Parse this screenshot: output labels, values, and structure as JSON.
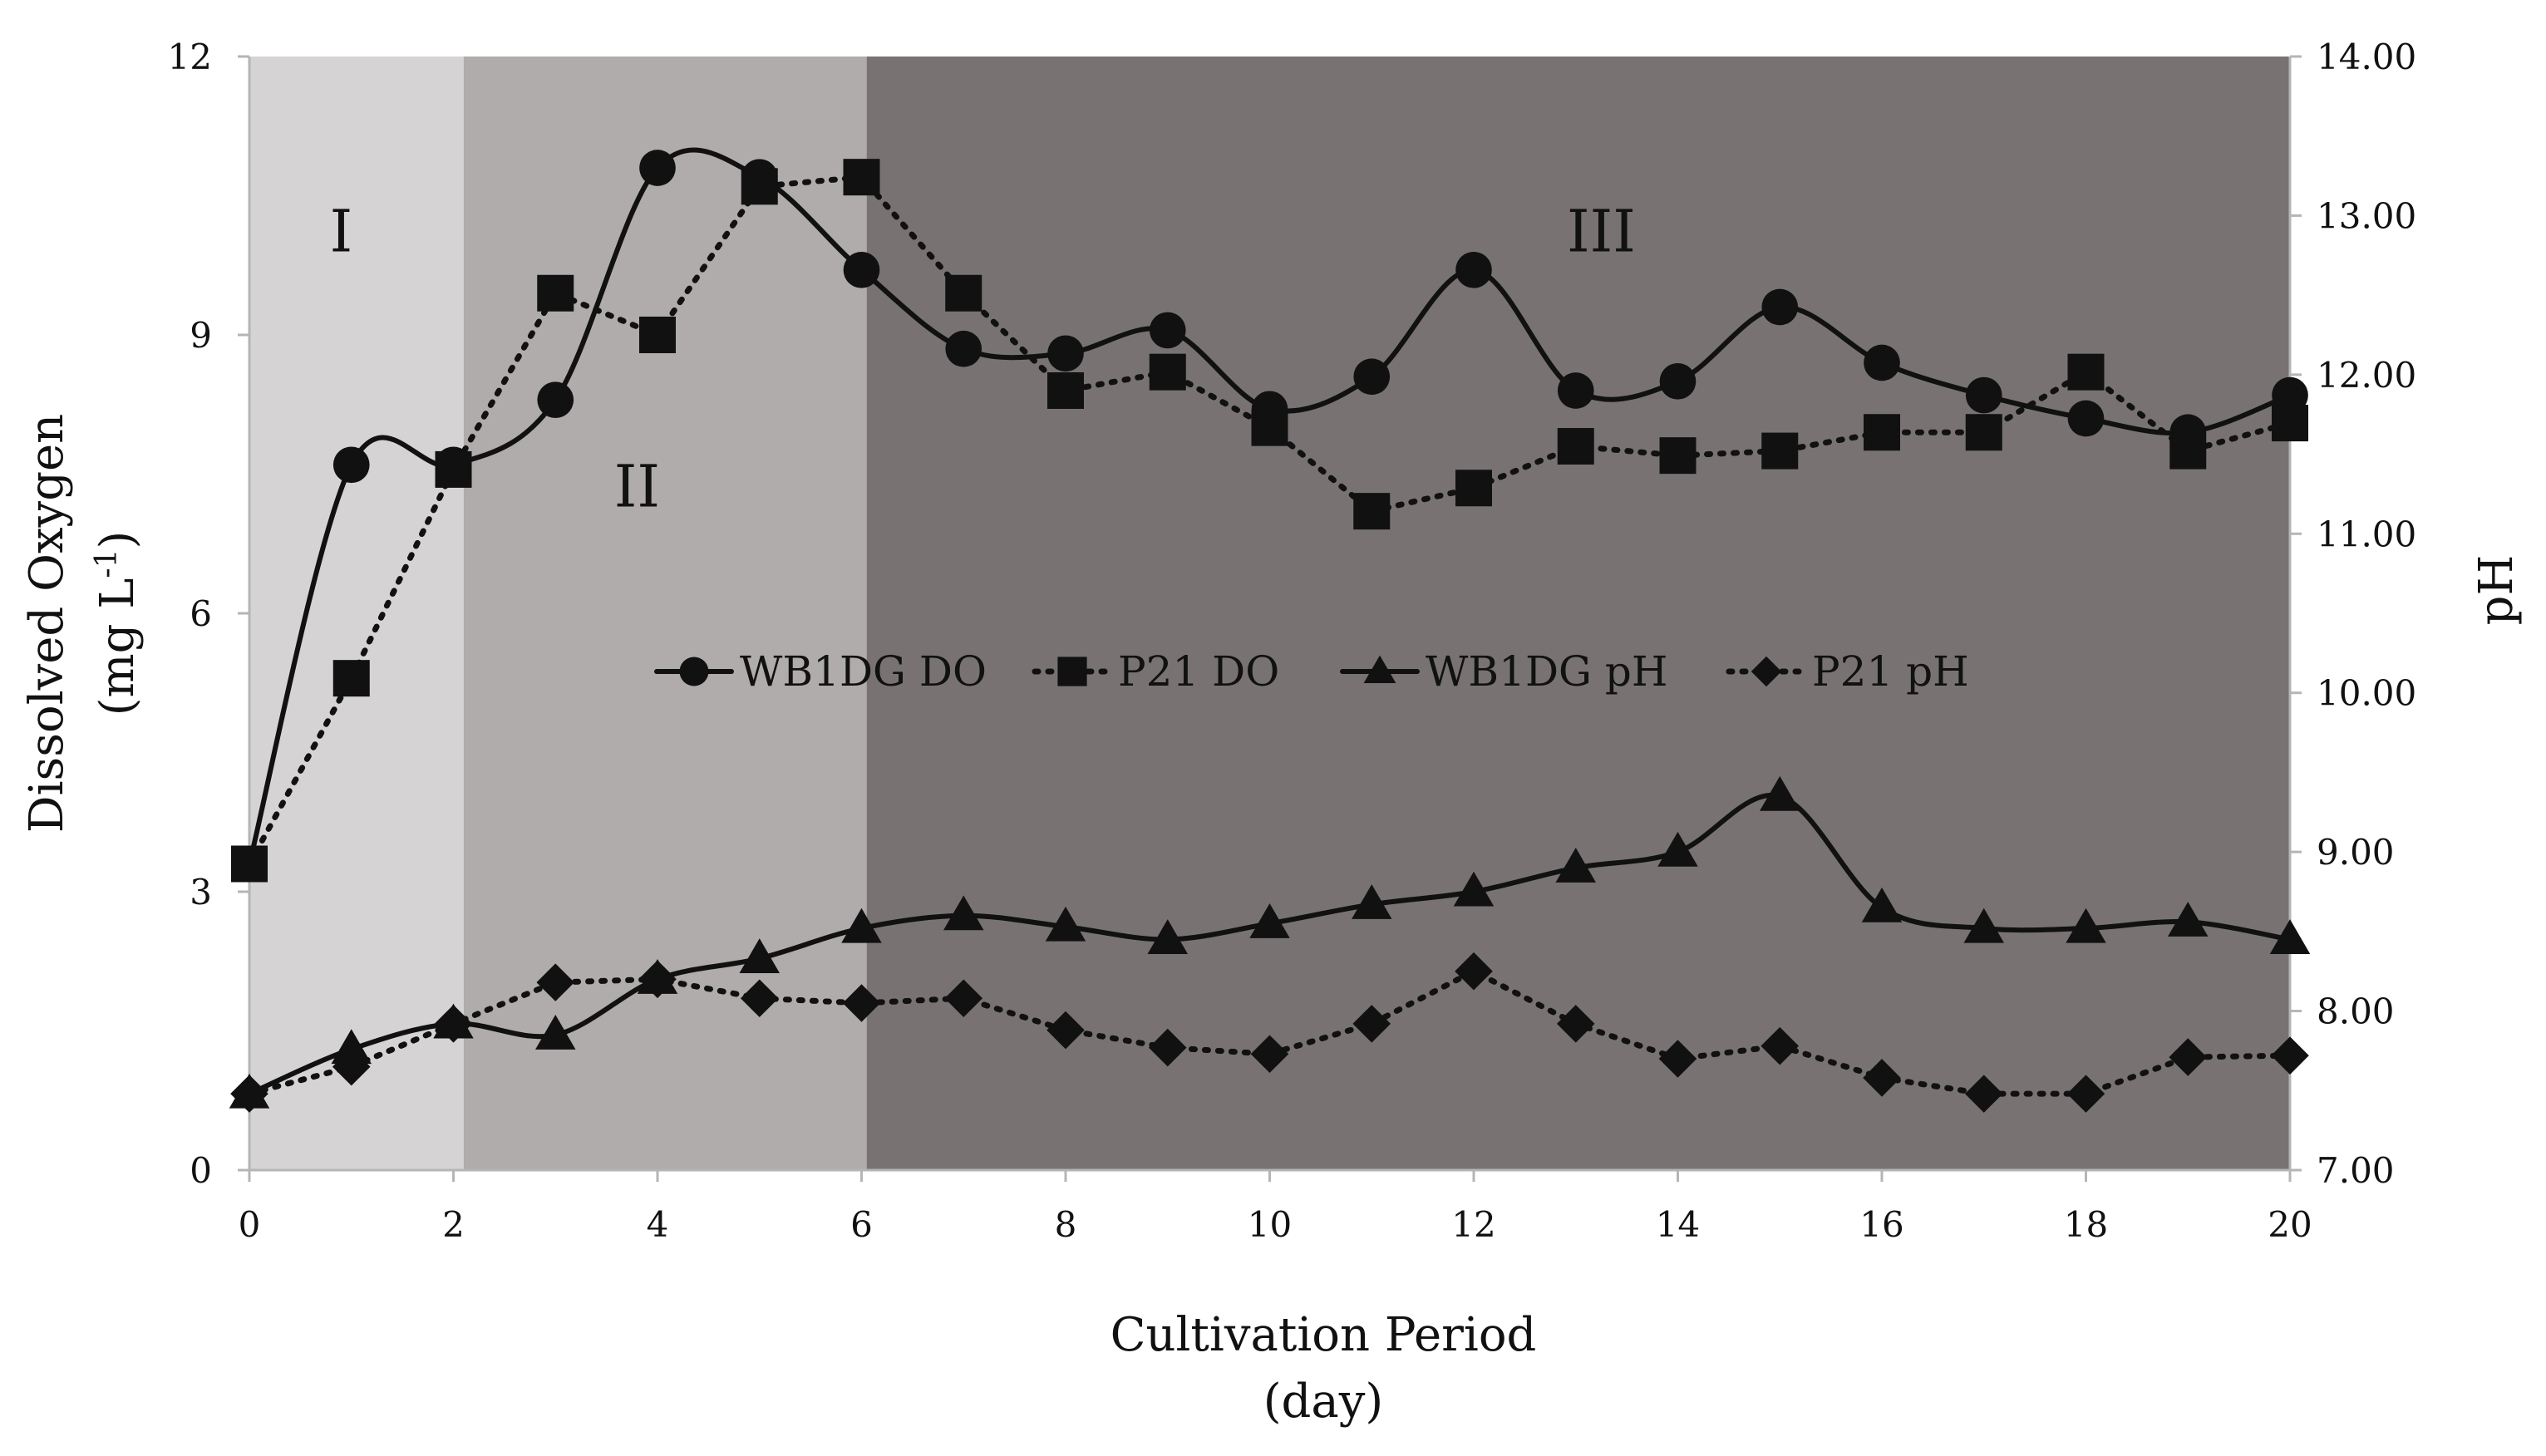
{
  "chart_data": {
    "type": "line",
    "title": "",
    "xlabel": "Cultivation Period",
    "xlabel_unit": "(day)",
    "ylabel": "Dissolved Oxygen",
    "ylabel_unit_prefix": "(mg L",
    "ylabel_unit_sup": "-1",
    "ylabel_unit_suffix": ")",
    "y2label": "pH",
    "xlim": [
      0,
      20
    ],
    "ylim": [
      0,
      12
    ],
    "y2lim": [
      7.0,
      14.0
    ],
    "xticks": [
      0,
      2,
      4,
      6,
      8,
      10,
      12,
      14,
      16,
      18,
      20
    ],
    "yticks": [
      0,
      3,
      6,
      9,
      12
    ],
    "y2ticks": [
      "7.00",
      "8.00",
      "9.00",
      "10.00",
      "11.00",
      "12.00",
      "13.00",
      "14.00"
    ],
    "grid": false,
    "legend_position": "center",
    "regions": [
      {
        "label": "I",
        "x_start": 0,
        "x_end": 2.1,
        "color": "#d5d3d4"
      },
      {
        "label": "II",
        "x_start": 2.1,
        "x_end": 6.05,
        "color": "#b0acab"
      },
      {
        "label": "III",
        "x_start": 6.05,
        "x_end": 20,
        "color": "#787372"
      }
    ],
    "region_label_positions": [
      {
        "label": "I",
        "x": 0.9,
        "y": 9.9
      },
      {
        "label": "II",
        "x": 3.8,
        "y": 7.15
      },
      {
        "label": "III",
        "x": 13.25,
        "y": 9.9
      }
    ],
    "series": [
      {
        "name": "WB1DG DO",
        "axis": "left",
        "marker": "circle",
        "line": "solid",
        "smooth": true,
        "x": [
          0,
          1,
          2,
          3,
          4,
          5,
          6,
          7,
          8,
          9,
          10,
          11,
          12,
          13,
          14,
          15,
          16,
          17,
          18,
          19,
          20
        ],
        "y": [
          3.3,
          7.6,
          7.6,
          8.3,
          10.8,
          10.7,
          9.7,
          8.85,
          8.8,
          9.05,
          8.2,
          8.55,
          9.7,
          8.4,
          8.5,
          9.3,
          8.7,
          8.35,
          8.1,
          7.95,
          8.35
        ]
      },
      {
        "name": "P21 DO",
        "axis": "left",
        "marker": "square",
        "line": "dotted",
        "smooth": false,
        "x": [
          0,
          1,
          2,
          3,
          4,
          5,
          6,
          7,
          8,
          9,
          10,
          11,
          12,
          13,
          14,
          15,
          16,
          17,
          18,
          19,
          20
        ],
        "y": [
          3.3,
          5.3,
          7.55,
          9.45,
          9.0,
          10.6,
          10.7,
          9.45,
          8.4,
          8.6,
          8.0,
          7.1,
          7.35,
          7.8,
          7.7,
          7.75,
          7.95,
          7.95,
          8.6,
          7.75,
          8.05
        ]
      },
      {
        "name": "WB1DG pH",
        "axis": "right",
        "marker": "triangle",
        "line": "solid",
        "smooth": true,
        "x": [
          0,
          1,
          2,
          3,
          4,
          5,
          6,
          7,
          8,
          9,
          10,
          11,
          12,
          13,
          14,
          15,
          16,
          17,
          18,
          19,
          20
        ],
        "y": [
          7.48,
          7.76,
          7.92,
          7.85,
          8.2,
          8.33,
          8.52,
          8.6,
          8.53,
          8.45,
          8.55,
          8.67,
          8.75,
          8.9,
          9.0,
          9.35,
          8.65,
          8.52,
          8.52,
          8.56,
          8.45
        ]
      },
      {
        "name": "P21 pH",
        "axis": "right",
        "marker": "diamond",
        "line": "dotted",
        "smooth": false,
        "x": [
          0,
          1,
          2,
          3,
          4,
          5,
          6,
          7,
          8,
          9,
          10,
          11,
          12,
          13,
          14,
          15,
          16,
          17,
          18,
          19,
          20
        ],
        "y": [
          7.48,
          7.65,
          7.92,
          8.18,
          8.2,
          8.08,
          8.05,
          8.08,
          7.88,
          7.77,
          7.73,
          7.92,
          8.25,
          7.92,
          7.7,
          7.78,
          7.58,
          7.48,
          7.48,
          7.71,
          7.72
        ]
      }
    ]
  }
}
